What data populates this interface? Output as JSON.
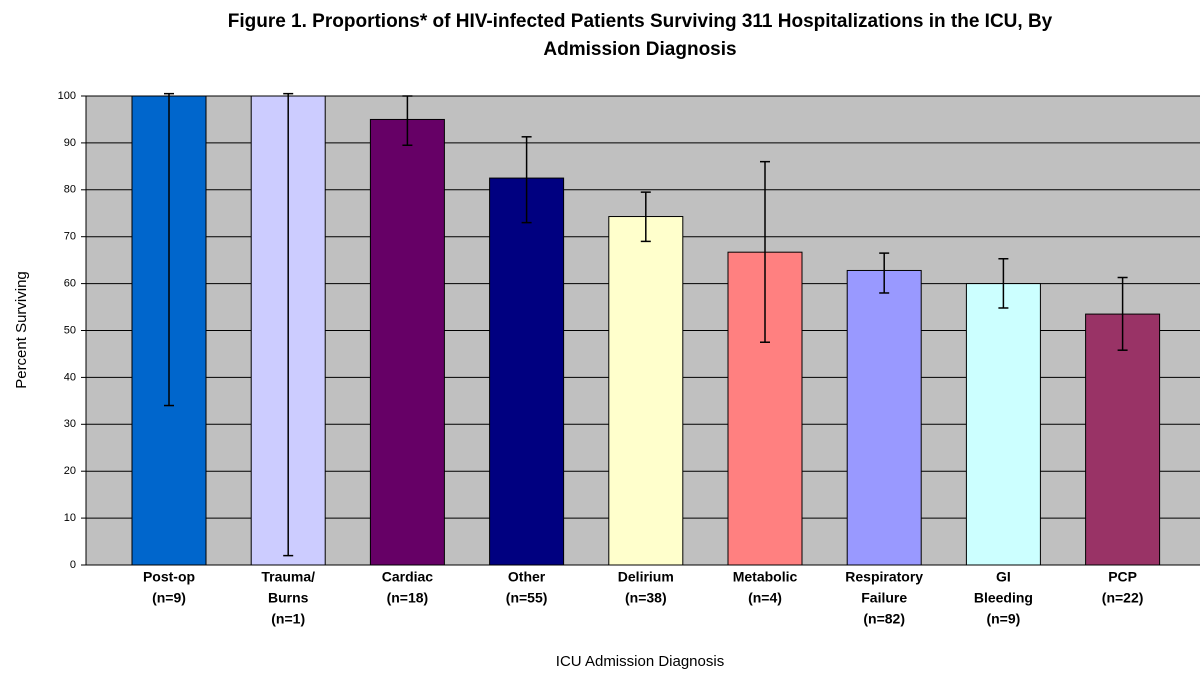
{
  "chart_data": {
    "type": "bar",
    "title": [
      "Figure 1. Proportions* of HIV-infected Patients Surviving 311 Hospitalizations in the ICU, By",
      "Admission Diagnosis"
    ],
    "x_label": "ICU Admission Diagnosis",
    "y_label": "Percent Surviving",
    "categories": [
      [
        "Post-op",
        "(n=9)"
      ],
      [
        "Trauma/",
        "Burns",
        "(n=1)"
      ],
      [
        "Cardiac",
        "(n=18)"
      ],
      [
        "Other",
        "(n=55)"
      ],
      [
        "Delirium",
        "(n=38)"
      ],
      [
        "Metabolic",
        "(n=4)"
      ],
      [
        "Respiratory",
        "Failure",
        "(n=82)"
      ],
      [
        "GI",
        "Bleeding",
        "(n=9)"
      ],
      [
        "PCP",
        "(n=22)"
      ]
    ],
    "values": [
      100,
      100,
      95,
      82.5,
      74.3,
      66.7,
      62.8,
      60,
      53.5
    ],
    "ci_low": [
      34,
      2,
      89.5,
      73,
      69,
      47.5,
      58,
      54.8,
      45.8
    ],
    "ci_high": [
      100.5,
      100.5,
      100,
      91.3,
      79.5,
      86,
      66.5,
      65.3,
      61.3
    ],
    "colors": [
      "#0066cc",
      "#ccccff",
      "#660066",
      "#000080",
      "#ffffcc",
      "#ff8080",
      "#9999ff",
      "#ccffff",
      "#993366"
    ],
    "ylim": [
      0,
      100
    ],
    "yticks": [
      0,
      10,
      20,
      30,
      40,
      50,
      60,
      70,
      80,
      90,
      100
    ],
    "grid": true,
    "background": "#c0c0c0"
  }
}
